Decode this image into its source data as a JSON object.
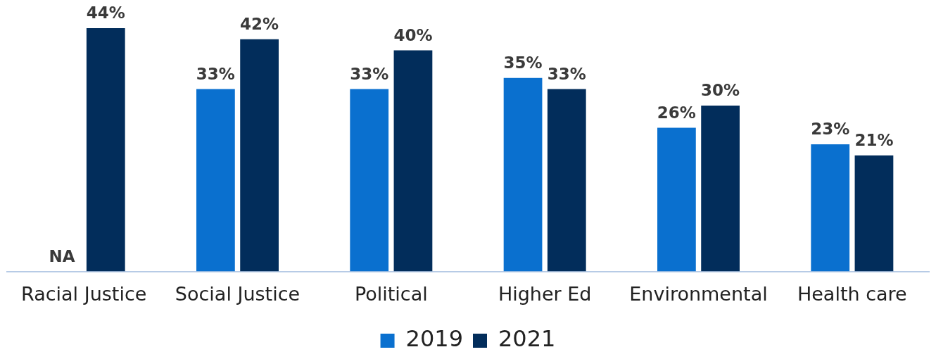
{
  "chart_data": {
    "type": "bar",
    "categories": [
      "Racial Justice",
      "Social Justice",
      "Political",
      "Higher Ed",
      "Environmental",
      "Health care"
    ],
    "series": [
      {
        "name": "2019",
        "color": "#0a70cf",
        "values": [
          null,
          33,
          33,
          35,
          26,
          23
        ],
        "value_labels": [
          "NA",
          "33%",
          "33%",
          "35%",
          "26%",
          "23%"
        ]
      },
      {
        "name": "2021",
        "color": "#022d5b",
        "values": [
          44,
          42,
          40,
          33,
          30,
          21
        ],
        "value_labels": [
          "44%",
          "42%",
          "40%",
          "33%",
          "30%",
          "21%"
        ]
      }
    ],
    "legend": "bottom",
    "grid": false
  }
}
